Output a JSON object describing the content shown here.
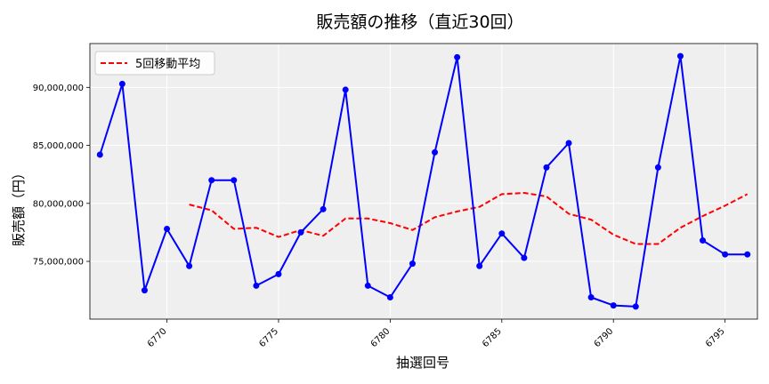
{
  "chart_data": {
    "type": "line",
    "title": "販売額の推移（直近30回）",
    "xlabel": "抽選回号",
    "ylabel": "販売額（円）",
    "x": [
      6767,
      6768,
      6769,
      6770,
      6771,
      6772,
      6773,
      6774,
      6775,
      6776,
      6777,
      6778,
      6779,
      6780,
      6781,
      6782,
      6783,
      6784,
      6785,
      6786,
      6787,
      6788,
      6789,
      6790,
      6791,
      6792,
      6793,
      6794,
      6795,
      6796
    ],
    "series": [
      {
        "name": "",
        "color": "#0000ff",
        "style": "solid-markers",
        "values": [
          84200000,
          90300000,
          72500000,
          77800000,
          74600000,
          82000000,
          82000000,
          72900000,
          73900000,
          77500000,
          79500000,
          89800000,
          72900000,
          71900000,
          74800000,
          84400000,
          92600000,
          74600000,
          77400000,
          75300000,
          83100000,
          85200000,
          71900000,
          71200000,
          71100000,
          83100000,
          92700000,
          76800000,
          75600000,
          75600000
        ]
      },
      {
        "name": "5回移動平均",
        "color": "#ff0000",
        "style": "dashed",
        "values": [
          null,
          null,
          null,
          null,
          79900000,
          79400000,
          77800000,
          77900000,
          77100000,
          77700000,
          77200000,
          78700000,
          78700000,
          78300000,
          77700000,
          78800000,
          79300000,
          79700000,
          80800000,
          80900000,
          80600000,
          79100000,
          78600000,
          77300000,
          76500000,
          76500000,
          77900000,
          78900000,
          79800000,
          80800000
        ]
      }
    ],
    "xlim": [
      6766.55,
      6796.45
    ],
    "ylim": [
      70020000,
      93780000
    ],
    "xticks": [
      6770,
      6775,
      6780,
      6785,
      6790,
      6795
    ],
    "yticks": [
      75000000,
      80000000,
      85000000,
      90000000
    ],
    "yticklabels": [
      "75,000,000",
      "80,000,000",
      "85,000,000",
      "90,000,000"
    ],
    "grid": true,
    "legend_position": "top-left",
    "colors": {
      "plot_background": "#efefef",
      "grid": "#ffffff"
    }
  }
}
